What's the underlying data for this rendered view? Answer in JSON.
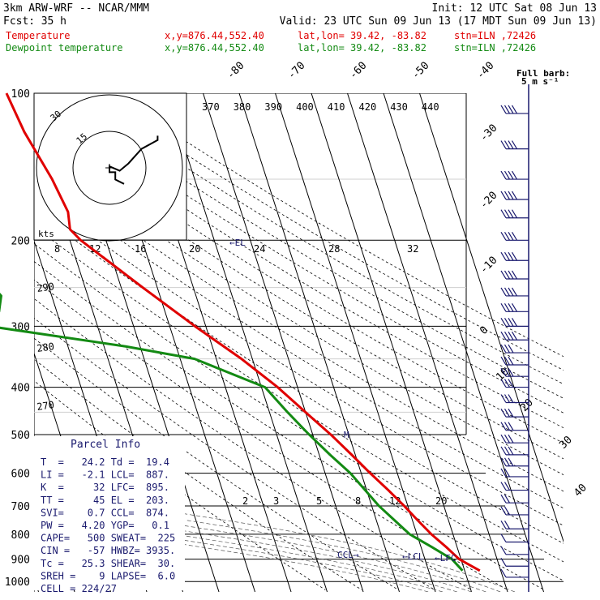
{
  "header": {
    "model": "3km ARW-WRF -- NCAR/MMM",
    "init": "Init: 12 UTC Sat 08 Jun 13",
    "fcst_label": "Fcst:",
    "fcst_value": "35 h",
    "valid": "Valid: 23 UTC Sun 09 Jun 13 (17 MDT Sun 09 Jun 13)",
    "temp_line": {
      "label": "Temperature",
      "xy": "x,y=876.44,552.40",
      "latlon": "lat,lon= 39.42, -83.82",
      "stn": "stn=ILN ,72426"
    },
    "dew_line": {
      "label": "Dewpoint temperature",
      "xy": "x,y=876.44,552.40",
      "latlon": "lat,lon= 39.42, -83.82",
      "stn": "stn=ILN ,72426"
    }
  },
  "wind_panel": {
    "title": "Full barb:",
    "subtitle": "5 m s⁻¹"
  },
  "hodograph": {
    "units": "kts",
    "ring_labels": [
      "15",
      "30"
    ]
  },
  "parcel": {
    "title": "Parcel Info",
    "rows": [
      "T  =   24.2 Td =  19.4",
      "LI =   -2.1 LCL=  887.",
      "K  =     32 LFC=  895.",
      "TT =     45 EL =  203.",
      "SVI=    0.7 CCL=  874.",
      "PW =   4.20 YGP=   0.1",
      "CAPE=   500 SWEAT=  225",
      "CIN =   -57 HWBZ= 3935.",
      "Tc =   25.3 SHEAR=  30.",
      "SREH =    9 LAPSE=  6.0",
      "CELL = 224/27"
    ]
  },
  "marker_labels": {
    "el": "←EL",
    "ccl": "CCL→",
    "lcl": "←LCL",
    "lfc": "←LFC",
    "m": "M"
  },
  "colors": {
    "temperature": "#e00000",
    "dewpoint": "#138a13",
    "text_dark": "#000000",
    "wind": "#1a1a6e",
    "grid": "#000000"
  },
  "chart_data": {
    "type": "skewt",
    "pressure_levels": [
      100,
      200,
      300,
      400,
      500,
      600,
      700,
      800,
      900,
      1000
    ],
    "isotherm_labels": [
      "-80",
      "-70",
      "-60",
      "-50",
      "-40",
      "-30",
      "-20",
      "-10",
      "0",
      "10",
      "20",
      "30",
      "40"
    ],
    "theta_labels": [
      "370",
      "380",
      "390",
      "400",
      "410",
      "420",
      "430",
      "440"
    ],
    "mixing_ratio_labels": [
      "8",
      "12",
      "16",
      "20",
      "24",
      "28",
      "32"
    ],
    "mixing_ratio_labels_low": [
      "2",
      "3",
      "5",
      "8",
      "12",
      "20"
    ],
    "side_theta_labels": [
      "290",
      "280",
      "270"
    ],
    "temperature": [
      {
        "p": 100,
        "t": -64.5
      },
      {
        "p": 120,
        "t": -63
      },
      {
        "p": 150,
        "t": -59.5
      },
      {
        "p": 175,
        "t": -58
      },
      {
        "p": 190,
        "t": -59
      },
      {
        "p": 200,
        "t": -57
      },
      {
        "p": 250,
        "t": -44
      },
      {
        "p": 300,
        "t": -33
      },
      {
        "p": 350,
        "t": -23
      },
      {
        "p": 400,
        "t": -15.5
      },
      {
        "p": 450,
        "t": -10
      },
      {
        "p": 500,
        "t": -5
      },
      {
        "p": 550,
        "t": -1
      },
      {
        "p": 600,
        "t": 2.5
      },
      {
        "p": 650,
        "t": 6
      },
      {
        "p": 700,
        "t": 9
      },
      {
        "p": 750,
        "t": 11.5
      },
      {
        "p": 800,
        "t": 14
      },
      {
        "p": 850,
        "t": 17
      },
      {
        "p": 900,
        "t": 19.5
      },
      {
        "p": 950,
        "t": 24.2
      }
    ],
    "dewpoint": [
      {
        "p": 100,
        "t": -95
      },
      {
        "p": 115,
        "t": -97
      },
      {
        "p": 130,
        "t": -100
      },
      {
        "p": 150,
        "t": -102
      },
      {
        "p": 175,
        "t": -101
      },
      {
        "p": 200,
        "t": -96
      },
      {
        "p": 230,
        "t": -88
      },
      {
        "p": 260,
        "t": -84
      },
      {
        "p": 280,
        "t": -86
      },
      {
        "p": 300,
        "t": -90
      },
      {
        "p": 330,
        "t": -54
      },
      {
        "p": 350,
        "t": -36
      },
      {
        "p": 400,
        "t": -19
      },
      {
        "p": 450,
        "t": -15
      },
      {
        "p": 500,
        "t": -11
      },
      {
        "p": 550,
        "t": -7
      },
      {
        "p": 600,
        "t": -3
      },
      {
        "p": 700,
        "t": 2
      },
      {
        "p": 800,
        "t": 8
      },
      {
        "p": 850,
        "t": 13
      },
      {
        "p": 900,
        "t": 17.5
      },
      {
        "p": 950,
        "t": 19.4
      }
    ],
    "hodograph_path": [
      {
        "u": 1.0,
        "v": -1.1
      },
      {
        "u": 0.4,
        "v": -0.8
      },
      {
        "u": 0.4,
        "v": -0.3
      },
      {
        "u": 0.0,
        "v": -0.3
      },
      {
        "u": 0.0,
        "v": 0.1
      },
      {
        "u": 0.7,
        "v": -0.2
      },
      {
        "u": 1.3,
        "v": 0.3
      },
      {
        "u": 2.2,
        "v": 1.3
      },
      {
        "u": 3.3,
        "v": 1.9
      },
      {
        "u": 3.3,
        "v": 2.2
      }
    ],
    "wind_barb_pressures": [
      110,
      130,
      150,
      165,
      180,
      200,
      220,
      240,
      260,
      280,
      300,
      320,
      340,
      360,
      380,
      400,
      430,
      460,
      490,
      520,
      550,
      580,
      610,
      650,
      690,
      730,
      780,
      830,
      880,
      930,
      980
    ]
  }
}
